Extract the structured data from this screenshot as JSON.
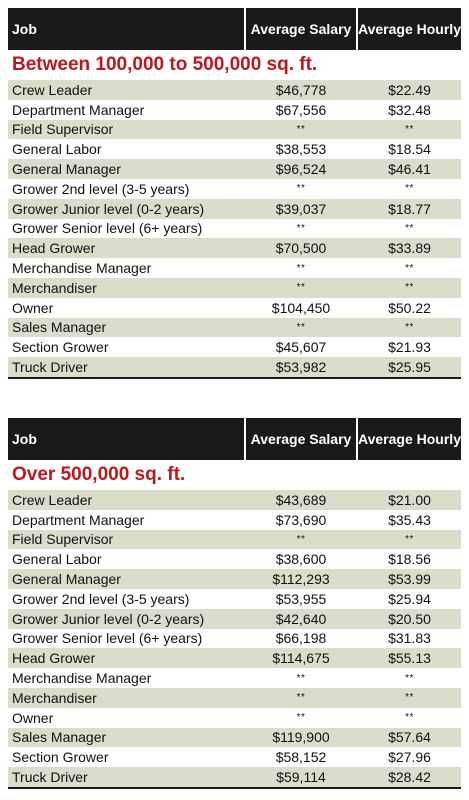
{
  "header": {
    "job": "Job",
    "salary": "Average Salary",
    "hourly": "Average Hourly"
  },
  "tables": [
    {
      "title": "Between 100,000 to 500,000 sq. ft.",
      "rows": [
        {
          "job": "Crew Leader",
          "salary": "$46,778",
          "hourly": "$22.49"
        },
        {
          "job": "Department Manager",
          "salary": "$67,556",
          "hourly": "$32.48"
        },
        {
          "job": "Field Supervisor",
          "salary": "**",
          "hourly": "**"
        },
        {
          "job": "General Labor",
          "salary": "$38,553",
          "hourly": "$18.54"
        },
        {
          "job": "General Manager",
          "salary": "$96,524",
          "hourly": "$46.41"
        },
        {
          "job": "Grower 2nd level (3-5 years)",
          "salary": "**",
          "hourly": "**"
        },
        {
          "job": "Grower Junior level (0-2 years)",
          "salary": "$39,037",
          "hourly": "$18.77"
        },
        {
          "job": "Grower Senior level (6+ years)",
          "salary": "**",
          "hourly": "**"
        },
        {
          "job": "Head Grower",
          "salary": "$70,500",
          "hourly": "$33.89"
        },
        {
          "job": "Merchandise Manager",
          "salary": "**",
          "hourly": "**"
        },
        {
          "job": "Merchandiser",
          "salary": "**",
          "hourly": "**"
        },
        {
          "job": "Owner",
          "salary": "$104,450",
          "hourly": "$50.22"
        },
        {
          "job": "Sales Manager",
          "salary": "**",
          "hourly": "**"
        },
        {
          "job": "Section Grower",
          "salary": "$45,607",
          "hourly": "$21.93"
        },
        {
          "job": "Truck Driver",
          "salary": "$53,982",
          "hourly": "$25.95"
        }
      ]
    },
    {
      "title": "Over 500,000 sq. ft.",
      "rows": [
        {
          "job": "Crew Leader",
          "salary": "$43,689",
          "hourly": "$21.00"
        },
        {
          "job": "Department Manager",
          "salary": "$73,690",
          "hourly": "$35.43"
        },
        {
          "job": "Field Supervisor",
          "salary": "**",
          "hourly": "**"
        },
        {
          "job": "General Labor",
          "salary": "$38,600",
          "hourly": "$18.56"
        },
        {
          "job": "General Manager",
          "salary": "$112,293",
          "hourly": "$53.99"
        },
        {
          "job": "Grower 2nd level (3-5 years)",
          "salary": "$53,955",
          "hourly": "$25.94"
        },
        {
          "job": "Grower Junior level (0-2 years)",
          "salary": "$42,640",
          "hourly": "$20.50"
        },
        {
          "job": "Grower Senior level (6+ years)",
          "salary": "$66,198",
          "hourly": "$31.83"
        },
        {
          "job": "Head Grower",
          "salary": "$114,675",
          "hourly": "$55.13"
        },
        {
          "job": "Merchandise Manager",
          "salary": "**",
          "hourly": "**"
        },
        {
          "job": "Merchandiser",
          "salary": "**",
          "hourly": "**"
        },
        {
          "job": "Owner",
          "salary": "**",
          "hourly": "**"
        },
        {
          "job": "Sales Manager",
          "salary": "$119,900",
          "hourly": "$57.64"
        },
        {
          "job": "Section Grower",
          "salary": "$58,152",
          "hourly": "$27.96"
        },
        {
          "job": "Truck Driver",
          "salary": "$59,114",
          "hourly": "$28.42"
        }
      ]
    }
  ],
  "colors": {
    "header_bg": "#1a1a1a",
    "title_red": "#c0161d",
    "row_stripe": "#dcdccb"
  }
}
